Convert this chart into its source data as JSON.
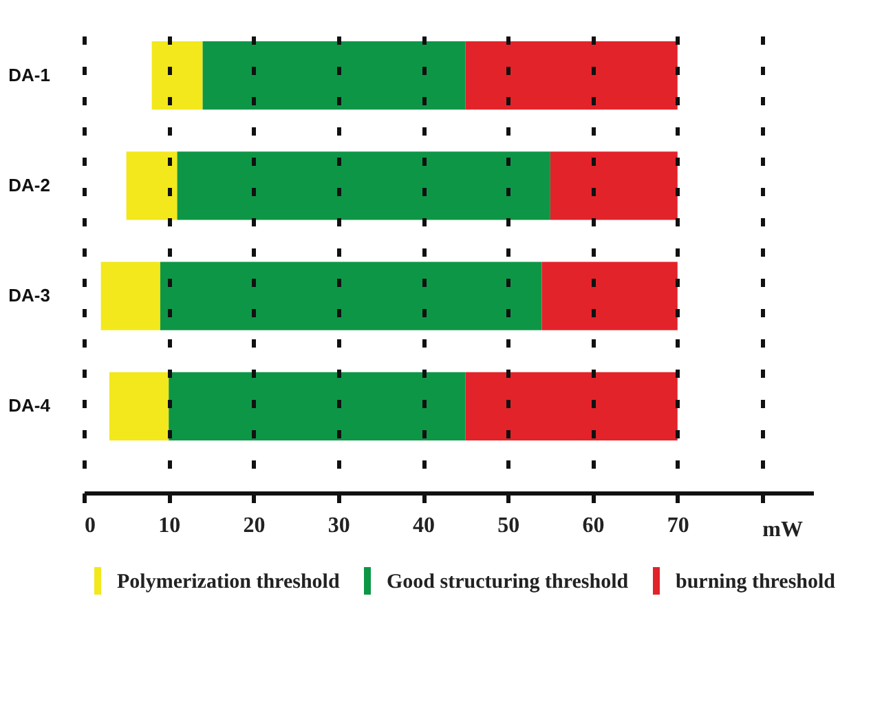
{
  "chart_data": {
    "type": "bar",
    "orientation": "horizontal",
    "categories": [
      "DA-1",
      "DA-2",
      "DA-3",
      "DA-4"
    ],
    "series": [
      {
        "name": "Polymerization threshold",
        "color": "#f2e81c",
        "base": [
          8,
          5,
          2,
          3
        ],
        "values": [
          6,
          6,
          7,
          7
        ]
      },
      {
        "name": "Good structuring threshold",
        "color": "#0e9647",
        "base": [
          14,
          11,
          9,
          10
        ],
        "values": [
          31,
          44,
          45,
          35
        ]
      },
      {
        "name": "burning threshold",
        "color": "#e2232a",
        "base": [
          45,
          55,
          54,
          45
        ],
        "values": [
          25,
          15,
          16,
          25
        ]
      }
    ],
    "xlabel": "mW",
    "xlim": [
      0,
      86
    ],
    "xticks": [
      0,
      10,
      20,
      30,
      40,
      50,
      60,
      70,
      {
        "value": 80,
        "label": null
      }
    ],
    "grid": "x",
    "legend": "bottom"
  }
}
